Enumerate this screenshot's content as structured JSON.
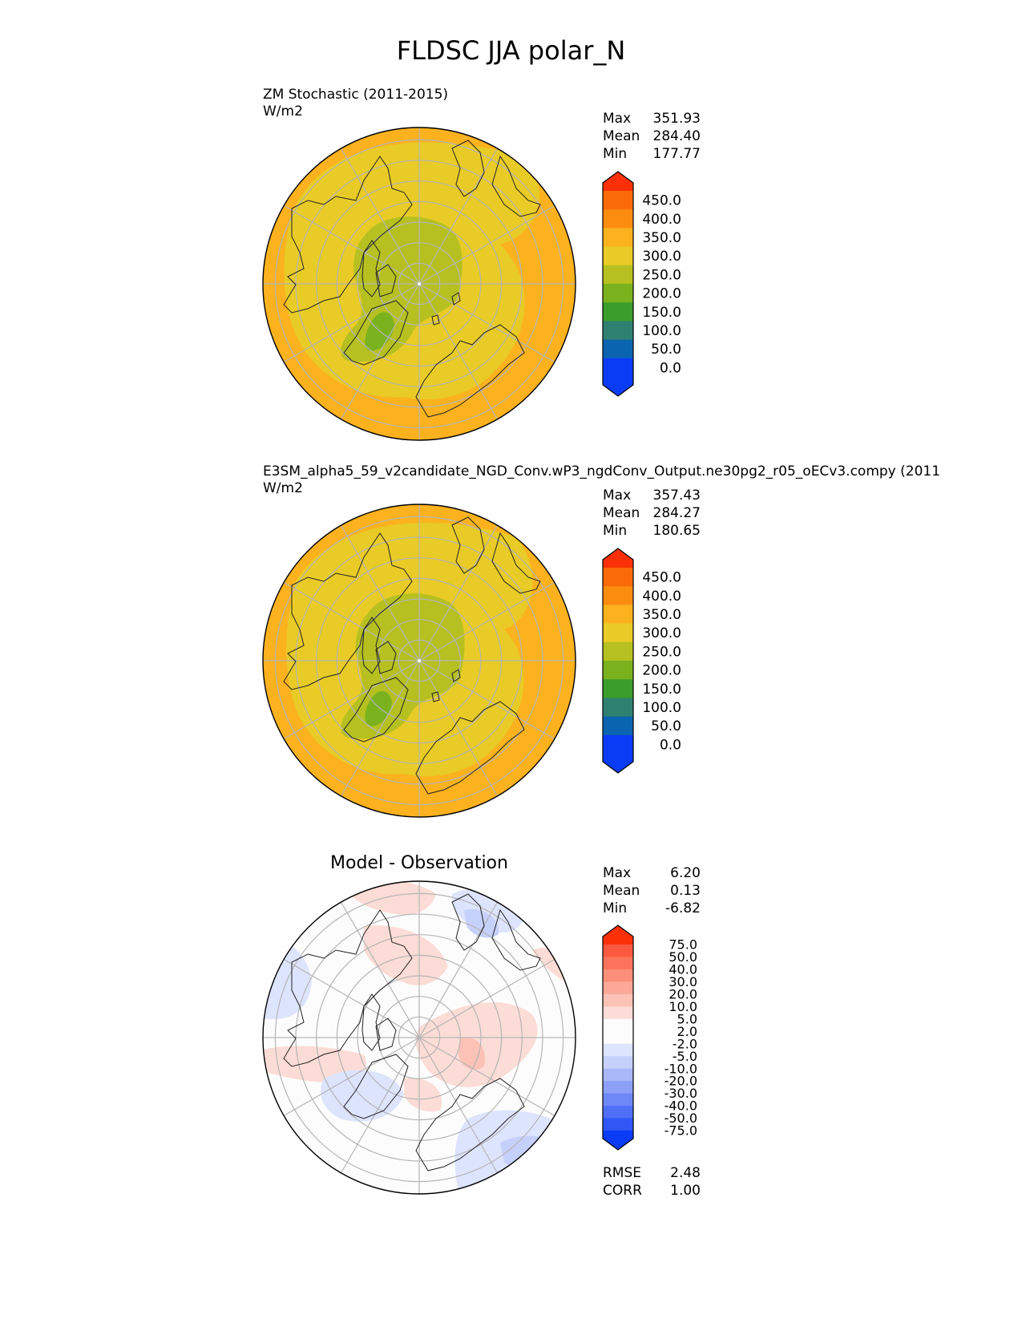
{
  "title": "FLDSC JJA polar_N",
  "colors": {
    "grid": "#b5b5b5",
    "coast": "#222222",
    "abs_bins": [
      "#0a3cf5",
      "#0a64b0",
      "#2e8070",
      "#3a9e2a",
      "#7ab21e",
      "#b6c020",
      "#e8cb26",
      "#fbb21e",
      "#fb8c10",
      "#fb6a08",
      "#fb3008"
    ],
    "diff_bins": [
      "#0a3cf5",
      "#3057f6",
      "#4f70f6",
      "#6e88f7",
      "#8ca0f8",
      "#aab8fa",
      "#c6d1fb",
      "#dde4fd",
      "#fcfcfc",
      "#fcfcfc",
      "#fcdcd6",
      "#fcc2b6",
      "#fca898",
      "#fc8e7a",
      "#fc745c",
      "#fc5a40",
      "#fb3008"
    ]
  },
  "chart_data": [
    {
      "type": "heatmap",
      "projection": "north-polar-stereographic",
      "title": "ZM Stochastic (2011-2015)",
      "units": "W/m2",
      "stats": {
        "max": "351.93",
        "mean": "284.40",
        "min": "177.77"
      },
      "stat_labels": {
        "max": "Max",
        "mean": "Mean",
        "min": "Min"
      },
      "levels": [
        "0.0",
        "50.0",
        "100.0",
        "150.0",
        "200.0",
        "250.0",
        "300.0",
        "350.0",
        "400.0",
        "450.0"
      ],
      "grid": true
    },
    {
      "type": "heatmap",
      "projection": "north-polar-stereographic",
      "title": "E3SM_alpha5_59_v2candidate_NGD_Conv.wP3_ngdConv_Output.ne30pg2_r05_oECv3.compy (2011",
      "units": "W/m2",
      "stats": {
        "max": "357.43",
        "mean": "284.27",
        "min": "180.65"
      },
      "stat_labels": {
        "max": "Max",
        "mean": "Mean",
        "min": "Min"
      },
      "levels": [
        "0.0",
        "50.0",
        "100.0",
        "150.0",
        "200.0",
        "250.0",
        "300.0",
        "350.0",
        "400.0",
        "450.0"
      ],
      "grid": true
    },
    {
      "type": "heatmap",
      "projection": "north-polar-stereographic",
      "title": "Model - Observation",
      "stats": {
        "max": "6.20",
        "mean": "0.13",
        "min": "-6.82"
      },
      "stat_labels": {
        "max": "Max",
        "mean": "Mean",
        "min": "Min"
      },
      "levels": [
        "-75.0",
        "-50.0",
        "-40.0",
        "-30.0",
        "-20.0",
        "-10.0",
        "-5.0",
        "-2.0",
        "2.0",
        "5.0",
        "10.0",
        "20.0",
        "30.0",
        "40.0",
        "50.0",
        "75.0"
      ],
      "metrics": {
        "rmse": "2.48",
        "corr": "1.00"
      },
      "metric_labels": {
        "rmse": "RMSE",
        "corr": "CORR"
      },
      "grid": true
    }
  ]
}
